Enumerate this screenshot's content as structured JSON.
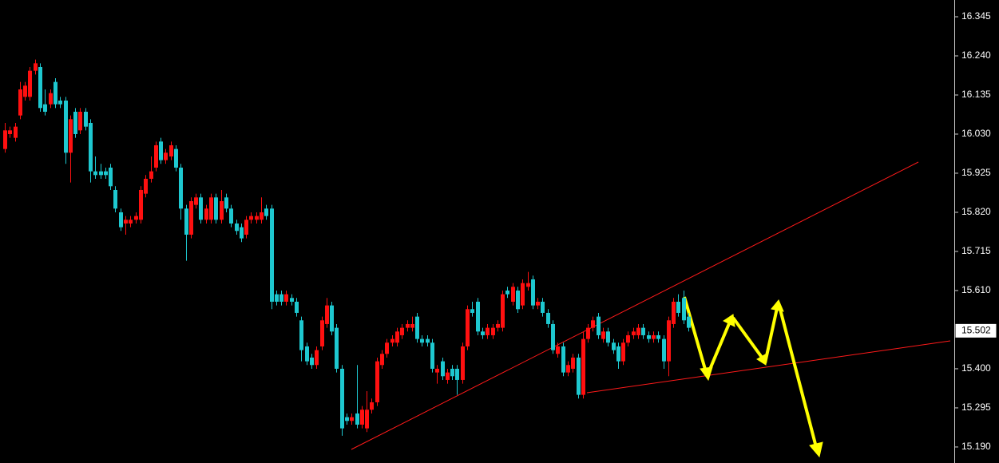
{
  "chart_data": {
    "type": "candlestick",
    "up_color": "#ff1010",
    "down_color": "#1ec8d0",
    "ylim": [
      15.147,
      16.39
    ],
    "yticks": [
      16.345,
      {
        "value": 16.24,
        "label": "16.240"
      },
      16.135,
      {
        "value": 16.03,
        "label": "16.030"
      },
      15.925,
      {
        "value": 15.82,
        "label": "15.820"
      },
      15.715,
      {
        "value": 15.61,
        "label": "15.610"
      },
      {
        "value": 15.4,
        "label": "15.400"
      },
      15.295,
      {
        "value": 15.19,
        "label": "15.190"
      }
    ],
    "last_price": 15.502,
    "open": [
      15.99,
      16.03,
      16.02,
      16.08,
      16.13,
      16.13,
      16.2,
      16.21,
      16.11,
      16.11,
      16.17,
      16.12,
      16.12,
      15.98,
      16.09,
      16.04,
      16.09,
      16.06,
      15.93,
      15.93,
      15.93,
      15.94,
      15.88,
      15.82,
      15.79,
      15.79,
      15.8,
      15.8,
      15.87,
      15.91,
      15.94,
      16.01,
      15.96,
      15.97,
      15.99,
      15.94,
      15.83,
      15.76,
      15.84,
      15.86,
      15.8,
      15.8,
      15.86,
      15.8,
      15.86,
      15.83,
      15.79,
      15.78,
      15.76,
      15.8,
      15.8,
      15.8,
      15.83,
      15.83,
      15.6,
      15.6,
      15.58,
      15.59,
      15.58,
      15.53,
      15.46,
      15.43,
      15.41,
      15.46,
      15.52,
      15.57,
      15.51,
      15.4,
      15.27,
      15.26,
      15.28,
      15.25,
      15.24,
      15.29,
      15.31,
      15.41,
      15.44,
      15.47,
      15.47,
      15.49,
      15.51,
      15.51,
      15.54,
      15.48,
      15.48,
      15.47,
      15.39,
      15.42,
      15.37,
      15.4,
      15.4,
      15.37,
      15.46,
      15.56,
      15.58,
      15.5,
      15.49,
      15.49,
      15.51,
      15.51,
      15.61,
      15.58,
      15.61,
      15.57,
      15.62,
      15.64,
      15.57,
      15.58,
      15.55,
      15.52,
      15.44,
      15.46,
      15.39,
      15.4,
      15.43,
      15.33,
      15.48,
      15.51,
      15.54,
      15.48,
      15.5,
      15.47,
      15.46,
      15.42,
      15.47,
      15.49,
      15.49,
      15.51,
      15.49,
      15.48,
      15.49,
      15.48,
      15.42,
      15.52,
      15.58,
      15.59,
      15.54
    ],
    "high": [
      16.06,
      16.05,
      16.06,
      16.17,
      16.17,
      16.21,
      16.23,
      16.22,
      16.15,
      16.15,
      16.18,
      16.13,
      16.13,
      16.08,
      16.1,
      16.1,
      16.1,
      16.07,
      15.97,
      15.95,
      15.94,
      15.95,
      15.89,
      15.83,
      15.81,
      15.81,
      15.82,
      15.89,
      15.92,
      15.97,
      16.01,
      16.02,
      15.99,
      16.01,
      16.0,
      15.95,
      15.84,
      15.86,
      15.87,
      15.87,
      15.84,
      15.87,
      15.87,
      15.88,
      15.87,
      15.84,
      15.8,
      15.79,
      15.81,
      15.82,
      15.82,
      15.86,
      15.84,
      15.84,
      15.61,
      15.61,
      15.61,
      15.6,
      15.59,
      15.54,
      15.47,
      15.44,
      15.46,
      15.54,
      15.59,
      15.58,
      15.52,
      15.41,
      15.28,
      15.28,
      15.41,
      15.3,
      15.34,
      15.32,
      15.43,
      15.45,
      15.48,
      15.49,
      15.51,
      15.52,
      15.53,
      15.54,
      15.55,
      15.49,
      15.49,
      15.48,
      15.41,
      15.43,
      15.4,
      15.41,
      15.41,
      15.47,
      15.57,
      15.58,
      15.59,
      15.51,
      15.52,
      15.52,
      15.53,
      15.61,
      15.62,
      15.63,
      15.62,
      15.64,
      15.66,
      15.65,
      15.59,
      15.59,
      15.56,
      15.53,
      15.47,
      15.47,
      15.42,
      15.44,
      15.44,
      15.5,
      15.52,
      15.54,
      15.55,
      15.51,
      15.51,
      15.48,
      15.47,
      15.48,
      15.5,
      15.51,
      15.52,
      15.52,
      15.5,
      15.5,
      15.5,
      15.49,
      15.54,
      15.59,
      15.6,
      15.61,
      15.55
    ],
    "low": [
      15.98,
      16.02,
      16.01,
      16.07,
      16.12,
      16.12,
      16.19,
      16.09,
      16.08,
      16.1,
      16.1,
      16.1,
      15.95,
      15.9,
      16.02,
      16.03,
      16.04,
      15.9,
      15.91,
      15.91,
      15.91,
      15.88,
      15.82,
      15.77,
      15.76,
      15.78,
      15.79,
      15.79,
      15.86,
      15.9,
      15.93,
      15.95,
      15.95,
      15.96,
      15.93,
      15.8,
      15.69,
      15.75,
      15.83,
      15.79,
      15.79,
      15.79,
      15.79,
      15.79,
      15.82,
      15.78,
      15.76,
      15.74,
      15.75,
      15.79,
      15.79,
      15.79,
      15.8,
      15.56,
      15.57,
      15.57,
      15.57,
      15.57,
      15.54,
      15.42,
      15.41,
      15.4,
      15.4,
      15.45,
      15.51,
      15.49,
      15.39,
      15.22,
      15.25,
      15.25,
      15.24,
      15.24,
      15.23,
      15.28,
      15.3,
      15.4,
      15.43,
      15.46,
      15.46,
      15.48,
      15.5,
      15.5,
      15.47,
      15.46,
      15.46,
      15.39,
      15.36,
      15.37,
      15.36,
      15.37,
      15.33,
      15.36,
      15.45,
      15.54,
      15.49,
      15.48,
      15.48,
      15.48,
      15.5,
      15.5,
      15.59,
      15.57,
      15.55,
      15.56,
      15.61,
      15.56,
      15.56,
      15.54,
      15.51,
      15.44,
      15.43,
      15.38,
      15.38,
      15.39,
      15.32,
      15.32,
      15.47,
      15.5,
      15.48,
      15.47,
      15.46,
      15.44,
      15.4,
      15.41,
      15.46,
      15.48,
      15.48,
      15.48,
      15.47,
      15.47,
      15.47,
      15.4,
      15.38,
      15.51,
      15.54,
      15.52,
      15.5
    ],
    "close": [
      16.04,
      16.04,
      16.05,
      16.15,
      16.16,
      16.2,
      16.22,
      16.1,
      16.09,
      16.14,
      16.11,
      16.11,
      15.98,
      16.07,
      16.03,
      16.09,
      16.05,
      15.93,
      15.92,
      15.92,
      15.92,
      15.89,
      15.83,
      15.78,
      15.8,
      15.8,
      15.81,
      15.88,
      15.91,
      15.93,
      16.0,
      15.96,
      15.98,
      16.0,
      15.94,
      15.83,
      15.76,
      15.85,
      15.86,
      15.8,
      15.83,
      15.86,
      15.8,
      15.85,
      15.83,
      15.79,
      15.77,
      15.75,
      15.8,
      15.81,
      15.81,
      15.82,
      15.81,
      15.58,
      15.58,
      15.58,
      15.6,
      15.58,
      15.55,
      15.45,
      15.42,
      15.41,
      15.45,
      15.53,
      15.57,
      15.5,
      15.4,
      15.24,
      15.26,
      15.27,
      15.25,
      15.29,
      15.29,
      15.31,
      15.42,
      15.44,
      15.47,
      15.48,
      15.5,
      15.51,
      15.52,
      15.52,
      15.48,
      15.47,
      15.47,
      15.4,
      15.4,
      15.38,
      15.39,
      15.38,
      15.37,
      15.46,
      15.56,
      15.55,
      15.5,
      15.49,
      15.51,
      15.51,
      15.52,
      15.6,
      15.6,
      15.62,
      15.56,
      15.63,
      15.63,
      15.57,
      15.58,
      15.55,
      15.52,
      15.45,
      15.46,
      15.39,
      15.41,
      15.43,
      15.33,
      15.48,
      15.51,
      15.53,
      15.49,
      15.5,
      15.47,
      15.45,
      15.42,
      15.47,
      15.49,
      15.5,
      15.51,
      15.49,
      15.48,
      15.49,
      15.48,
      15.42,
      15.53,
      15.58,
      15.55,
      15.53,
      15.51
    ]
  }
}
